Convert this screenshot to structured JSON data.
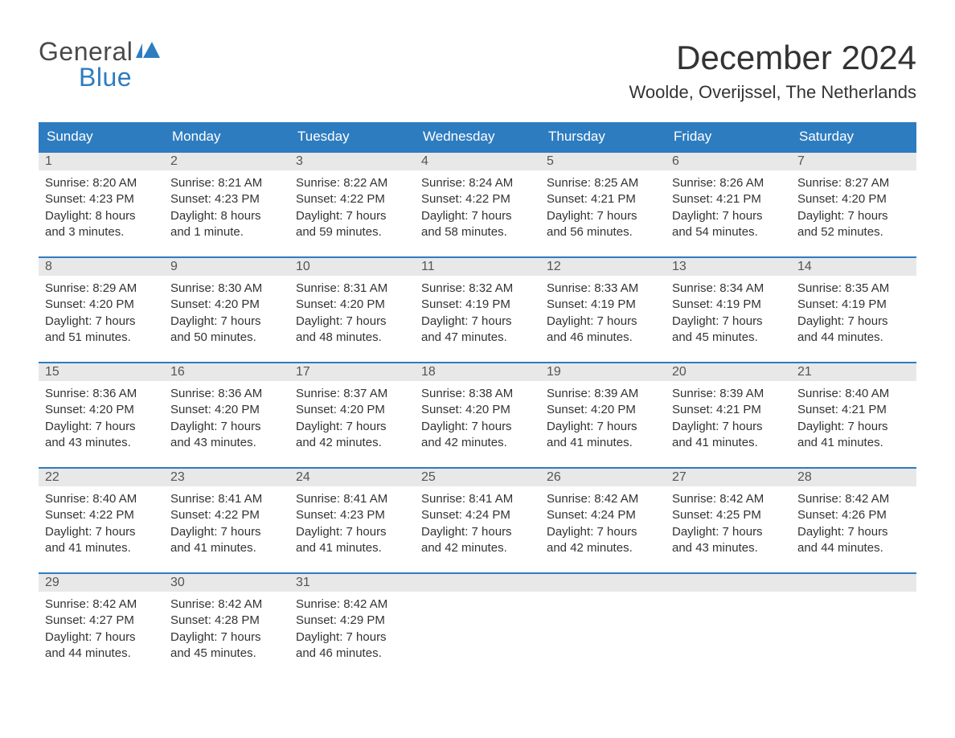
{
  "brand": {
    "line1": "General",
    "line2": "Blue",
    "color1": "#4a4a4a",
    "color2": "#2e7cc0"
  },
  "title": "December 2024",
  "location": "Woolde, Overijssel, The Netherlands",
  "colors": {
    "header_bg": "#2e7cc0",
    "header_fg": "#ffffff",
    "daynum_bg": "#e8e8e8",
    "daynum_border": "#2e7cc0",
    "text": "#333333",
    "bg": "#ffffff"
  },
  "day_names": [
    "Sunday",
    "Monday",
    "Tuesday",
    "Wednesday",
    "Thursday",
    "Friday",
    "Saturday"
  ],
  "label": {
    "sunrise": "Sunrise:",
    "sunset": "Sunset:",
    "daylight": "Daylight:"
  },
  "weeks": [
    [
      {
        "n": "1",
        "sr": "8:20 AM",
        "ss": "4:23 PM",
        "dl": "8 hours and 3 minutes."
      },
      {
        "n": "2",
        "sr": "8:21 AM",
        "ss": "4:23 PM",
        "dl": "8 hours and 1 minute."
      },
      {
        "n": "3",
        "sr": "8:22 AM",
        "ss": "4:22 PM",
        "dl": "7 hours and 59 minutes."
      },
      {
        "n": "4",
        "sr": "8:24 AM",
        "ss": "4:22 PM",
        "dl": "7 hours and 58 minutes."
      },
      {
        "n": "5",
        "sr": "8:25 AM",
        "ss": "4:21 PM",
        "dl": "7 hours and 56 minutes."
      },
      {
        "n": "6",
        "sr": "8:26 AM",
        "ss": "4:21 PM",
        "dl": "7 hours and 54 minutes."
      },
      {
        "n": "7",
        "sr": "8:27 AM",
        "ss": "4:20 PM",
        "dl": "7 hours and 52 minutes."
      }
    ],
    [
      {
        "n": "8",
        "sr": "8:29 AM",
        "ss": "4:20 PM",
        "dl": "7 hours and 51 minutes."
      },
      {
        "n": "9",
        "sr": "8:30 AM",
        "ss": "4:20 PM",
        "dl": "7 hours and 50 minutes."
      },
      {
        "n": "10",
        "sr": "8:31 AM",
        "ss": "4:20 PM",
        "dl": "7 hours and 48 minutes."
      },
      {
        "n": "11",
        "sr": "8:32 AM",
        "ss": "4:19 PM",
        "dl": "7 hours and 47 minutes."
      },
      {
        "n": "12",
        "sr": "8:33 AM",
        "ss": "4:19 PM",
        "dl": "7 hours and 46 minutes."
      },
      {
        "n": "13",
        "sr": "8:34 AM",
        "ss": "4:19 PM",
        "dl": "7 hours and 45 minutes."
      },
      {
        "n": "14",
        "sr": "8:35 AM",
        "ss": "4:19 PM",
        "dl": "7 hours and 44 minutes."
      }
    ],
    [
      {
        "n": "15",
        "sr": "8:36 AM",
        "ss": "4:20 PM",
        "dl": "7 hours and 43 minutes."
      },
      {
        "n": "16",
        "sr": "8:36 AM",
        "ss": "4:20 PM",
        "dl": "7 hours and 43 minutes."
      },
      {
        "n": "17",
        "sr": "8:37 AM",
        "ss": "4:20 PM",
        "dl": "7 hours and 42 minutes."
      },
      {
        "n": "18",
        "sr": "8:38 AM",
        "ss": "4:20 PM",
        "dl": "7 hours and 42 minutes."
      },
      {
        "n": "19",
        "sr": "8:39 AM",
        "ss": "4:20 PM",
        "dl": "7 hours and 41 minutes."
      },
      {
        "n": "20",
        "sr": "8:39 AM",
        "ss": "4:21 PM",
        "dl": "7 hours and 41 minutes."
      },
      {
        "n": "21",
        "sr": "8:40 AM",
        "ss": "4:21 PM",
        "dl": "7 hours and 41 minutes."
      }
    ],
    [
      {
        "n": "22",
        "sr": "8:40 AM",
        "ss": "4:22 PM",
        "dl": "7 hours and 41 minutes."
      },
      {
        "n": "23",
        "sr": "8:41 AM",
        "ss": "4:22 PM",
        "dl": "7 hours and 41 minutes."
      },
      {
        "n": "24",
        "sr": "8:41 AM",
        "ss": "4:23 PM",
        "dl": "7 hours and 41 minutes."
      },
      {
        "n": "25",
        "sr": "8:41 AM",
        "ss": "4:24 PM",
        "dl": "7 hours and 42 minutes."
      },
      {
        "n": "26",
        "sr": "8:42 AM",
        "ss": "4:24 PM",
        "dl": "7 hours and 42 minutes."
      },
      {
        "n": "27",
        "sr": "8:42 AM",
        "ss": "4:25 PM",
        "dl": "7 hours and 43 minutes."
      },
      {
        "n": "28",
        "sr": "8:42 AM",
        "ss": "4:26 PM",
        "dl": "7 hours and 44 minutes."
      }
    ],
    [
      {
        "n": "29",
        "sr": "8:42 AM",
        "ss": "4:27 PM",
        "dl": "7 hours and 44 minutes."
      },
      {
        "n": "30",
        "sr": "8:42 AM",
        "ss": "4:28 PM",
        "dl": "7 hours and 45 minutes."
      },
      {
        "n": "31",
        "sr": "8:42 AM",
        "ss": "4:29 PM",
        "dl": "7 hours and 46 minutes."
      },
      {
        "empty": true
      },
      {
        "empty": true
      },
      {
        "empty": true
      },
      {
        "empty": true
      }
    ]
  ]
}
